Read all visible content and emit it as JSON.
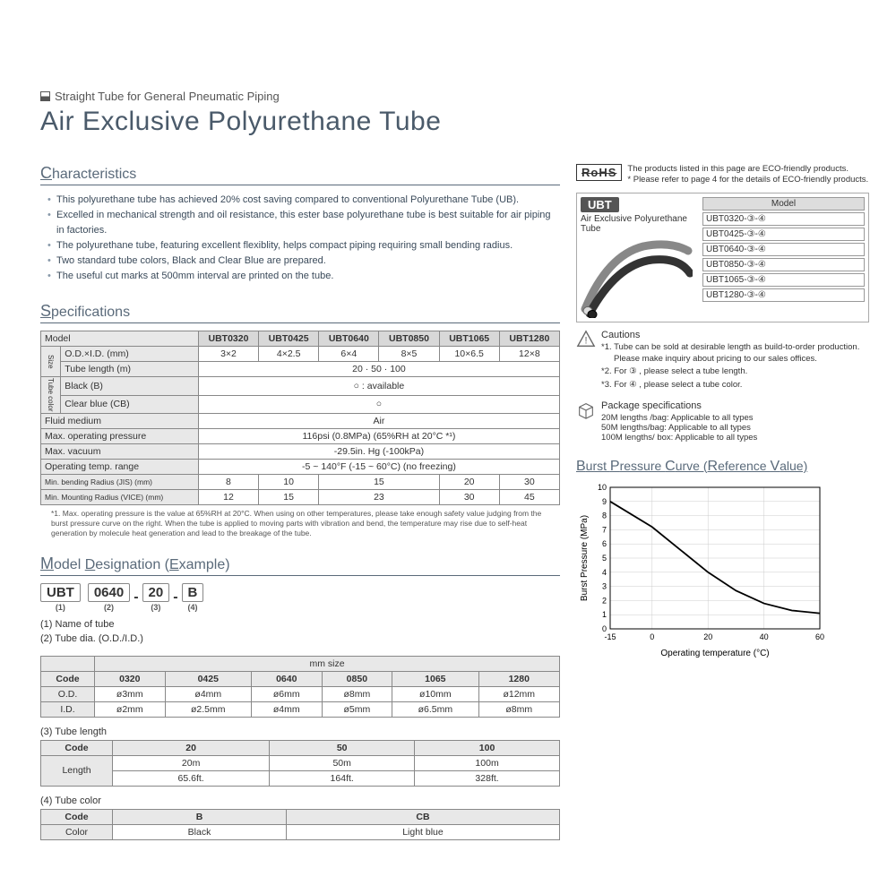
{
  "preTitle": "Straight Tube for General Pneumatic Piping",
  "title": "Air Exclusive Polyurethane Tube",
  "characteristics": {
    "heading": "Characteristics",
    "items": [
      "This polyurethane tube has achieved 20% cost saving compared to conventional Polyurethane Tube (UB).",
      "Excelled in mechanical strength and oil resistance, this ester base polyurethane tube is best suitable for air piping in factories.",
      "The polyurethane tube, featuring excellent flexiblity, helps compact piping requiring small bending radius.",
      "Two standard tube colors, Black and Clear Blue are prepared.",
      "The useful cut marks at 500mm interval are printed on the tube."
    ]
  },
  "specs": {
    "heading": "Specifications",
    "models": [
      "UBT0320",
      "UBT0425",
      "UBT0640",
      "UBT0850",
      "UBT1065",
      "UBT1280"
    ],
    "rows": {
      "modelLbl": "Model",
      "sizeLbl": "Size",
      "odid": "O.D.×I.D. (mm)",
      "odidVals": [
        "3×2",
        "4×2.5",
        "6×4",
        "8×5",
        "10×6.5",
        "12×8"
      ],
      "tubeLen": "Tube length (m)",
      "tubeLenVal": "20 · 50 · 100",
      "colorLbl": "Tube color",
      "black": "Black (B)",
      "blackVal": "○ : available",
      "clear": "Clear blue (CB)",
      "clearVal": "○",
      "fluid": "Fluid medium",
      "fluidVal": "Air",
      "maxOp": "Max. operating pressure",
      "maxOpVal": "116psi (0.8MPa) (65%RH at 20°C *¹)",
      "maxVac": "Max. vacuum",
      "maxVacVal": "-29.5in. Hg (-100kPa)",
      "tempRange": "Operating temp. range",
      "tempRangeVal": "-5 ~ 140°F (-15 ~ 60°C) (no freezing)",
      "bendJIS": "Min. bending Radius (JIS) (mm)",
      "bendJISVals": [
        "8",
        "10",
        "15",
        "15",
        "20",
        "30"
      ],
      "bendVICE": "Min. Mounting Radius (VICE) (mm)",
      "bendVICEVals": [
        "12",
        "15",
        "23",
        "23",
        "30",
        "45"
      ]
    },
    "footnote": "*1. Max. operating pressure is the value at 65%RH at 20°C. When using on other temperatures, please take enough safety value judging from the burst pressure curve on the right. When the tube is applied to moving parts with vibration and bend, the temperature may rise due to self-heat generation by molecule heat generation and lead to the breakage of the tube."
  },
  "modelDesig": {
    "heading": "Model Designation (Example)",
    "segs": [
      "UBT",
      "0640",
      "20",
      "B"
    ],
    "segNums": [
      "(1)",
      "(2)",
      "(3)",
      "(4)"
    ],
    "legend": [
      "(1) Name of tube",
      "(2) Tube dia. (O.D./I.D.)"
    ],
    "diaTable": {
      "header": "mm size",
      "cols": [
        "Code",
        "0320",
        "0425",
        "0640",
        "0850",
        "1065",
        "1280"
      ],
      "od": [
        "O.D.",
        "ø3mm",
        "ø4mm",
        "ø6mm",
        "ø8mm",
        "ø10mm",
        "ø12mm"
      ],
      "id": [
        "I.D.",
        "ø2mm",
        "ø2.5mm",
        "ø4mm",
        "ø5mm",
        "ø6.5mm",
        "ø8mm"
      ]
    },
    "lenLabel": "(3) Tube length",
    "lenTable": {
      "cols": [
        "Code",
        "20",
        "50",
        "100"
      ],
      "r1": [
        "Length",
        "20m",
        "50m",
        "100m"
      ],
      "r2": [
        "",
        "65.6ft.",
        "164ft.",
        "328ft."
      ]
    },
    "colorLabel": "(4) Tube color",
    "colorTable": {
      "cols": [
        "Code",
        "B",
        "CB"
      ],
      "row": [
        "Color",
        "Black",
        "Light blue"
      ]
    }
  },
  "rightSide": {
    "rohs": "RoHS",
    "eco1": "The products listed in this page are ECO-friendly products.",
    "eco2": "* Please refer to page 4 for the details of ECO-friendly products.",
    "ubt": "UBT",
    "ubtSub": "Air Exclusive Polyurethane Tube",
    "modelHead": "Model",
    "models": [
      "UBT0320-③-④",
      "UBT0425-③-④",
      "UBT0640-③-④",
      "UBT0850-③-④",
      "UBT1065-③-④",
      "UBT1280-③-④"
    ],
    "cautionsH": "Cautions",
    "cautions": [
      "*1. Tube can be sold at desirable length as build-to-order production.  Please make inquiry about pricing to our sales offices.",
      "*2. For ③ , please select a tube length.",
      "*3. For ④ , please select a tube color."
    ],
    "pkgH": "Package specifications",
    "pkgs": [
      "20M lengths /bag: Applicable to all types",
      "50M lengths/bag: Applicable to all types",
      "100M lengths/ box: Applicable to all types"
    ]
  },
  "chart": {
    "title": "Burst Pressure Curve (Reference Value)",
    "xlabel": "Operating temperature (°C)",
    "ylabel": "Burst Pressure (MPa)",
    "xlim": [
      -15,
      60
    ],
    "ylim": [
      0,
      10
    ],
    "xticks": [
      -15,
      0,
      20,
      40,
      60
    ],
    "yticks": [
      0,
      1,
      2,
      3,
      4,
      5,
      6,
      7,
      8,
      9,
      10
    ],
    "line": [
      [
        -15,
        9
      ],
      [
        0,
        7.2
      ],
      [
        10,
        5.6
      ],
      [
        20,
        4
      ],
      [
        30,
        2.7
      ],
      [
        40,
        1.8
      ],
      [
        50,
        1.3
      ],
      [
        60,
        1.1
      ]
    ],
    "lineColor": "#000000",
    "gridColor": "#cccccc",
    "axisColor": "#000000",
    "font": 10
  }
}
